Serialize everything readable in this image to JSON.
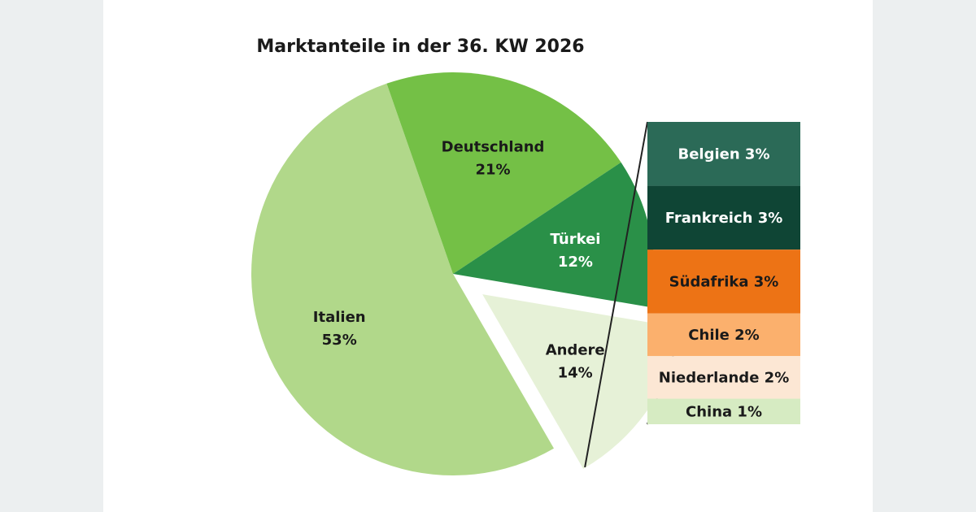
{
  "chart_data": {
    "type": "pie",
    "title": "Marktanteile in der 36. KW 2026",
    "slices": [
      {
        "name": "Italien",
        "label": "53%",
        "value": 53,
        "color": "#b1d88a",
        "text_color": "#1a1a1a"
      },
      {
        "name": "Deutschland",
        "label": "21%",
        "value": 21,
        "color": "#74c046",
        "text_color": "#1a1a1a"
      },
      {
        "name": "Türkei",
        "label": "12%",
        "value": 12,
        "color": "#2a9048",
        "text_color": "#ffffff"
      },
      {
        "name": "Andere",
        "label": "14%",
        "value": 14,
        "color": "#e6f1d7",
        "text_color": "#1a1a1a",
        "exploded": true
      }
    ],
    "breakdown_of": "Andere",
    "breakdown": [
      {
        "name": "Belgien",
        "label": "3%",
        "value": 3,
        "color": "#2b6a57",
        "text_color": "#ffffff"
      },
      {
        "name": "Frankreich",
        "label": "3%",
        "value": 3,
        "color": "#0f4535",
        "text_color": "#ffffff"
      },
      {
        "name": "Südafrika",
        "label": "3%",
        "value": 3,
        "color": "#ed7315",
        "text_color": "#1a1a1a"
      },
      {
        "name": "Chile",
        "label": "2%",
        "value": 2,
        "color": "#fbb06d",
        "text_color": "#1a1a1a"
      },
      {
        "name": "Niederlande",
        "label": "2%",
        "value": 2,
        "color": "#fce7d4",
        "text_color": "#1a1a1a"
      },
      {
        "name": "China",
        "label": "1%",
        "value": 1,
        "color": "#d6ebc2",
        "text_color": "#1a1a1a"
      }
    ]
  }
}
